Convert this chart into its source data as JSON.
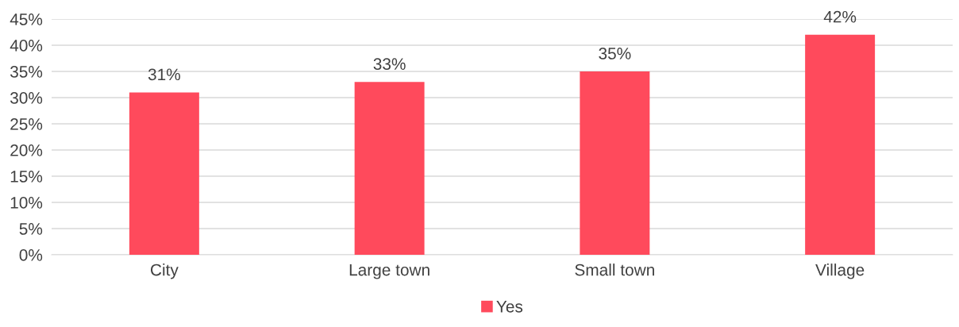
{
  "chart_data": {
    "type": "bar",
    "categories": [
      "City",
      "Large town",
      "Small town",
      "Village"
    ],
    "series": [
      {
        "name": "Yes",
        "color": "#ff4a5c",
        "values": [
          31,
          33,
          35,
          42
        ]
      }
    ],
    "value_labels": [
      "31%",
      "33%",
      "35%",
      "42%"
    ],
    "ylim": [
      0,
      45
    ],
    "yticks": [
      {
        "value": 0,
        "label": "0%"
      },
      {
        "value": 5,
        "label": "5%"
      },
      {
        "value": 10,
        "label": "10%"
      },
      {
        "value": 15,
        "label": "15%"
      },
      {
        "value": 20,
        "label": "20%"
      },
      {
        "value": 25,
        "label": "25%"
      },
      {
        "value": 30,
        "label": "30%"
      },
      {
        "value": 35,
        "label": "35%"
      },
      {
        "value": 40,
        "label": "40%"
      },
      {
        "value": 45,
        "label": "45%"
      }
    ],
    "grid": "y",
    "legend": "bottom"
  }
}
